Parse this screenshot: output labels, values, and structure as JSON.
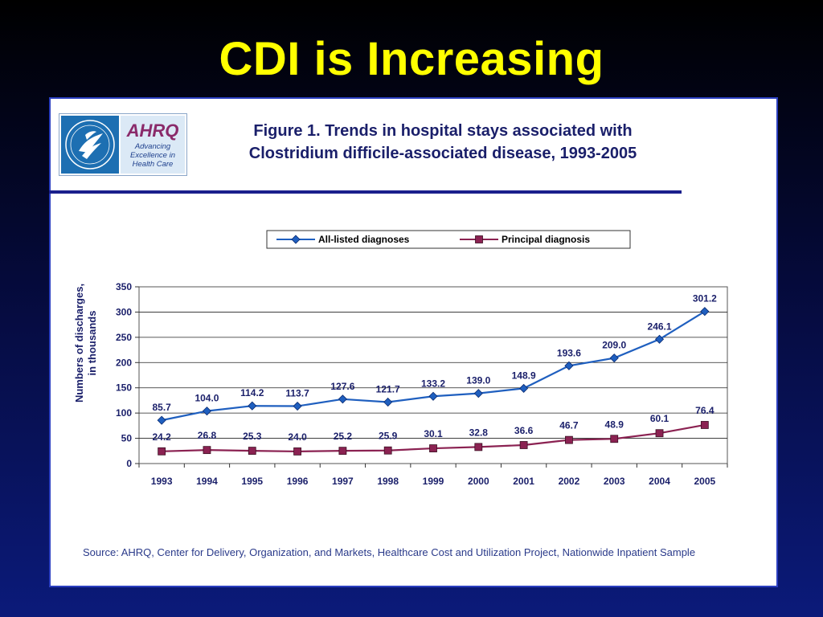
{
  "slide": {
    "title": "CDI is Increasing"
  },
  "logo": {
    "brand": "AHRQ",
    "tagline": "Advancing\nExcellence in\nHealth Care"
  },
  "figure": {
    "title_line1": "Figure 1. Trends in hospital stays associated with",
    "title_line2": "Clostridium difficile-associated disease, 1993-2005",
    "source": "Source: AHRQ, Center for Delivery, Organization, and Markets, Healthcare Cost and Utilization Project, Nationwide Inpatient Sample"
  },
  "colors": {
    "title": "#ffff00",
    "series_all": "#1f5fbf",
    "series_principal": "#8b2252",
    "label_text": "#1a1f6a"
  },
  "chart_data": {
    "type": "line",
    "ylabel": "Numbers of discharges,\nin thousands",
    "xlabel": "",
    "ylim": [
      0,
      350
    ],
    "yticks": [
      0,
      50,
      100,
      150,
      200,
      250,
      300,
      350
    ],
    "grid": true,
    "legend": "top",
    "categories": [
      "1993",
      "1994",
      "1995",
      "1996",
      "1997",
      "1998",
      "1999",
      "2000",
      "2001",
      "2002",
      "2003",
      "2004",
      "2005"
    ],
    "series": [
      {
        "name": "All-listed diagnoses",
        "marker": "diamond",
        "values": [
          85.7,
          104.0,
          114.2,
          113.7,
          127.6,
          121.7,
          133.2,
          139.0,
          148.9,
          193.6,
          209.0,
          246.1,
          301.2
        ],
        "labels": [
          "85.7",
          "104.0",
          "114.2",
          "113.7",
          "127.6",
          "121.7",
          "133.2",
          "139.0",
          "148.9",
          "193.6",
          "209.0",
          "246.1",
          "301.2"
        ]
      },
      {
        "name": "Principal diagnosis",
        "marker": "square",
        "values": [
          24.2,
          26.8,
          25.3,
          24.0,
          25.2,
          25.9,
          30.1,
          32.8,
          36.6,
          46.7,
          48.9,
          60.1,
          76.4
        ],
        "labels": [
          "24.2",
          "26.8",
          "25.3",
          "24.0",
          "25.2",
          "25.9",
          "30.1",
          "32.8",
          "36.6",
          "46.7",
          "48.9",
          "60.1",
          "76.4"
        ]
      }
    ]
  }
}
